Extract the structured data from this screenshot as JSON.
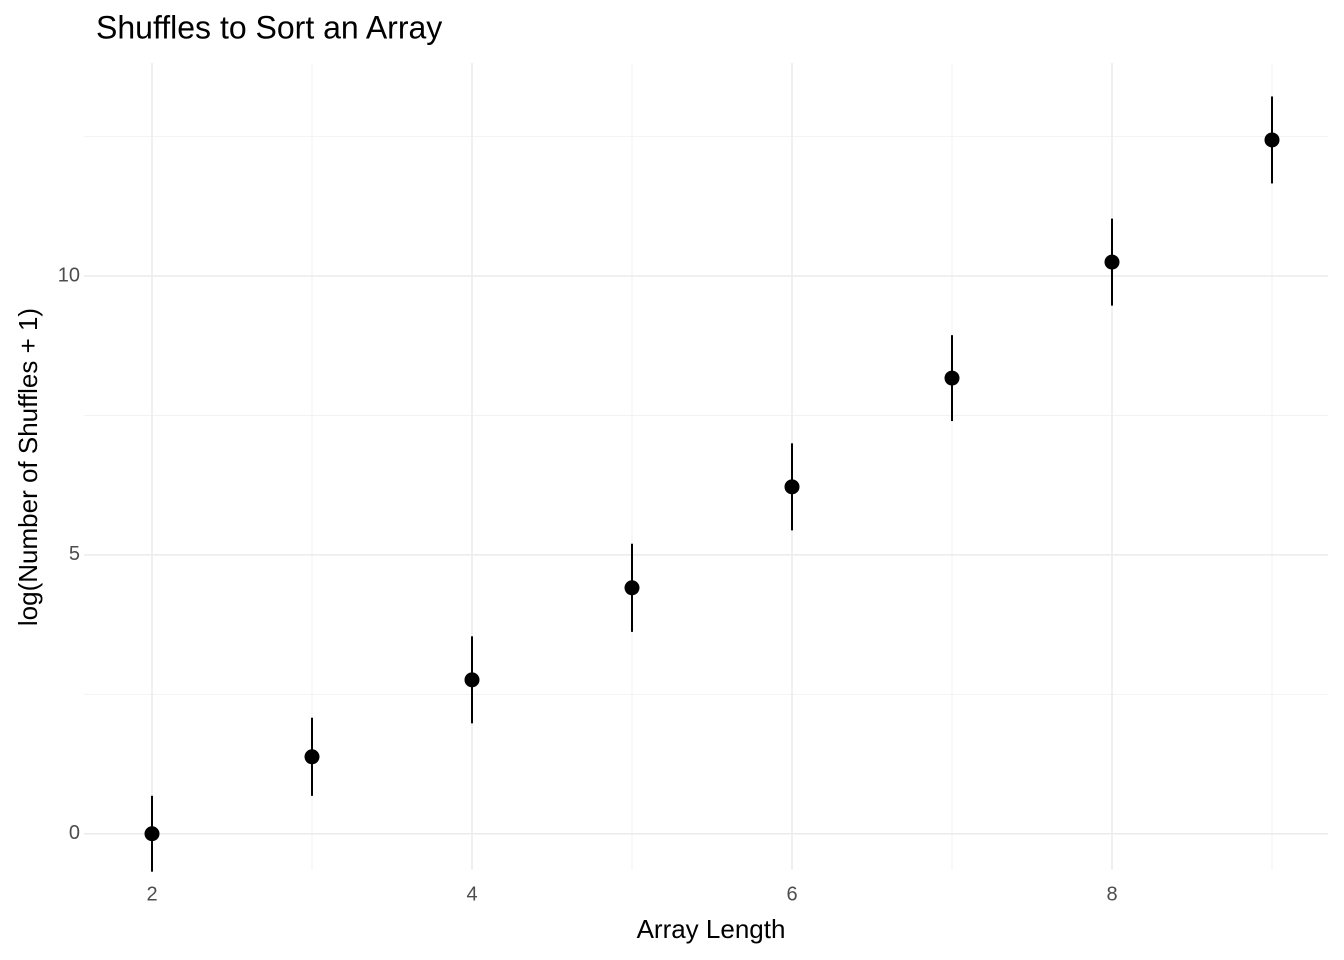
{
  "chart_data": {
    "type": "scatter",
    "title": "Shuffles to Sort an Array",
    "x_label": "Array Length",
    "y_label": "log(Number of Shuffles + 1)",
    "x": [
      2,
      3,
      4,
      5,
      6,
      7,
      8,
      9
    ],
    "values": [
      0,
      1.38,
      2.76,
      4.41,
      6.22,
      8.17,
      10.25,
      12.44
    ],
    "errors": [
      0.68,
      0.7,
      0.78,
      0.79,
      0.78,
      0.77,
      0.78,
      0.78
    ],
    "color": "#000000",
    "xlim": [
      1.575,
      9.35
    ],
    "ylim": [
      -0.65,
      13.82
    ],
    "xticks": [
      2,
      4,
      6,
      8
    ],
    "yticks": [
      0,
      5,
      10
    ],
    "xminor": [
      3,
      5,
      7,
      9
    ],
    "yminor": [
      2.5,
      7.5,
      12.5
    ],
    "grid": true
  }
}
